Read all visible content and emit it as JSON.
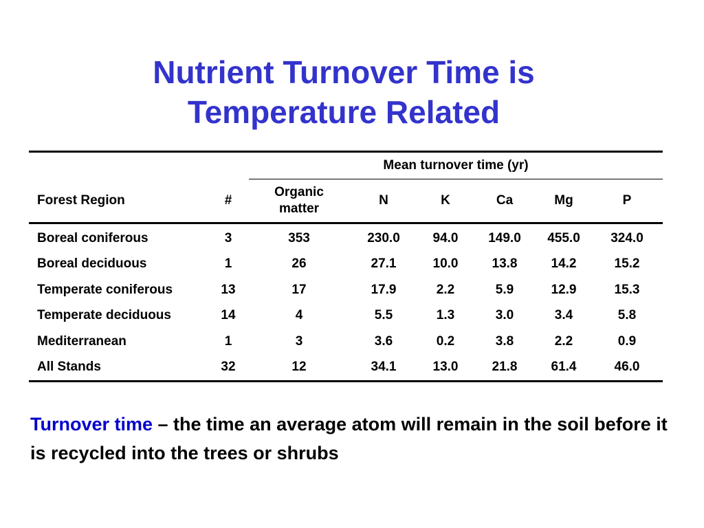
{
  "title": {
    "line1": "Nutrient Turnover Time is",
    "line2": "Temperature Related"
  },
  "table": {
    "group_header": "Mean turnover time (yr)",
    "columns": {
      "region": "Forest Region",
      "count": "#",
      "organic_line1": "Organic",
      "organic_line2": "matter",
      "n": "N",
      "k": "K",
      "ca": "Ca",
      "mg": "Mg",
      "p": "P"
    },
    "rows": [
      {
        "region": "Boreal coniferous",
        "count": "3",
        "organic": "353",
        "n": "230.0",
        "k": "94.0",
        "ca": "149.0",
        "mg": "455.0",
        "p": "324.0"
      },
      {
        "region": "Boreal deciduous",
        "count": "1",
        "organic": "26",
        "n": "27.1",
        "k": "10.0",
        "ca": "13.8",
        "mg": "14.2",
        "p": "15.2"
      },
      {
        "region": "Temperate coniferous",
        "count": "13",
        "organic": "17",
        "n": "17.9",
        "k": "2.2",
        "ca": "5.9",
        "mg": "12.9",
        "p": "15.3"
      },
      {
        "region": "Temperate deciduous",
        "count": "14",
        "organic": "4",
        "n": "5.5",
        "k": "1.3",
        "ca": "3.0",
        "mg": "3.4",
        "p": "5.8"
      },
      {
        "region": "Mediterranean",
        "count": "1",
        "organic": "3",
        "n": "3.6",
        "k": "0.2",
        "ca": "3.8",
        "mg": "2.2",
        "p": "0.9"
      },
      {
        "region": "All Stands",
        "count": "32",
        "organic": "12",
        "n": "34.1",
        "k": "13.0",
        "ca": "21.8",
        "mg": "61.4",
        "p": "46.0"
      }
    ]
  },
  "definition": {
    "term": "Turnover time",
    "text": " – the time an average atom will remain in the soil before it is recycled into the trees or shrubs"
  },
  "colors": {
    "title": "#3333cc",
    "term": "#0000cc",
    "text": "#000000"
  }
}
